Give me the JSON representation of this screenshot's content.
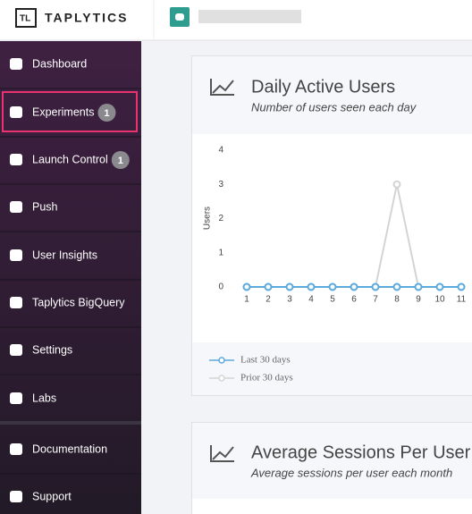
{
  "header": {
    "logo": "TAPLYTICS"
  },
  "sidebar": {
    "items": [
      {
        "label": "Dashboard"
      },
      {
        "label": "Experiments",
        "badge": 1
      },
      {
        "label": "Launch Control",
        "badge": 1
      },
      {
        "label": "Push"
      },
      {
        "label": "User Insights"
      },
      {
        "label": "Taplytics BigQuery"
      },
      {
        "label": "Settings"
      },
      {
        "label": "Labs"
      },
      {
        "label": "Documentation"
      },
      {
        "label": "Support"
      }
    ]
  },
  "cards": [
    {
      "title": "Daily Active Users",
      "subtitle": "Number of users seen each day"
    },
    {
      "title": "Average Sessions Per User",
      "subtitle": "Average sessions per user each month"
    }
  ],
  "chart_data": {
    "type": "line",
    "y_label": "Users",
    "x": [
      1,
      2,
      3,
      4,
      5,
      6,
      7,
      8,
      9,
      10,
      11
    ],
    "series": [
      {
        "name": "Last 30 days",
        "color": "#5aaadd",
        "values": [
          0,
          0,
          0,
          0,
          0,
          0,
          0,
          0,
          0,
          0,
          0
        ]
      },
      {
        "name": "Prior 30 days",
        "color": "#d4d4d4",
        "values": [
          0,
          0,
          0,
          0,
          0,
          0,
          0,
          3,
          0,
          0,
          0
        ]
      }
    ],
    "xlim": [
      0,
      12
    ],
    "xticks": [
      1,
      2,
      3,
      4,
      5,
      6,
      7,
      8,
      9,
      10,
      11
    ],
    "ylim": [
      0,
      4
    ],
    "yticks": [
      0,
      1,
      2,
      3,
      4
    ]
  }
}
